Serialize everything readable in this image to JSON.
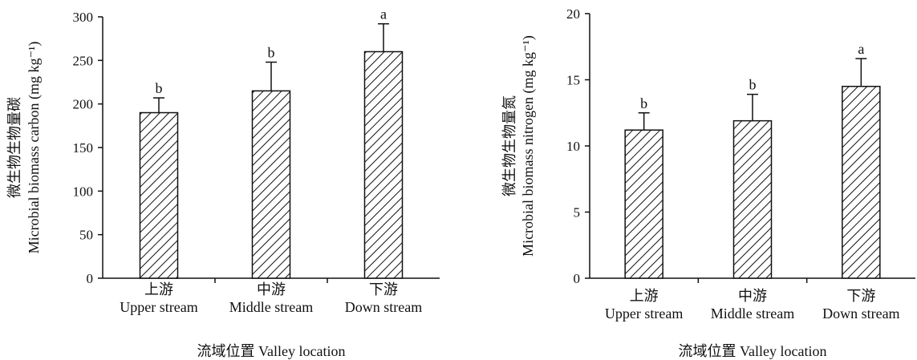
{
  "chart_data": [
    {
      "type": "bar",
      "categories": [
        {
          "zh": "上游",
          "en": "Upper stream"
        },
        {
          "zh": "中游",
          "en": "Middle stream"
        },
        {
          "zh": "下游",
          "en": "Down stream"
        }
      ],
      "values": [
        190,
        215,
        260
      ],
      "errors": [
        17,
        33,
        32
      ],
      "significance": [
        "b",
        "b",
        "a"
      ],
      "ylabel_zh": "微生物生物量碳",
      "ylabel_en": "Microbial biomass carbon (mg kg⁻¹)",
      "xlabel": "流域位置 Valley location",
      "ylim": [
        0,
        300
      ],
      "yticks": [
        0,
        50,
        100,
        150,
        200,
        250,
        300
      ],
      "grid": false,
      "fill": "diagonal-hatch"
    },
    {
      "type": "bar",
      "categories": [
        {
          "zh": "上游",
          "en": "Upper stream"
        },
        {
          "zh": "中游",
          "en": "Middle stream"
        },
        {
          "zh": "下游",
          "en": "Down stream"
        }
      ],
      "values": [
        11.2,
        11.9,
        14.5
      ],
      "errors": [
        1.3,
        2.0,
        2.1
      ],
      "significance": [
        "b",
        "b",
        "a"
      ],
      "ylabel_zh": "微生物生物量氮",
      "ylabel_en": "Microbial biomass nitrogen (mg kg⁻¹)",
      "xlabel": "流域位置 Valley location",
      "ylim": [
        0,
        20
      ],
      "yticks": [
        0,
        5,
        10,
        15,
        20
      ],
      "grid": false,
      "fill": "diagonal-hatch"
    }
  ]
}
